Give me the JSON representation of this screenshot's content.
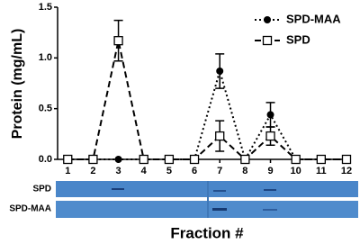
{
  "chart_data": {
    "type": "line",
    "y_label": "Protein (mg/mL)",
    "x_label": "Fraction #",
    "x": [
      1,
      2,
      3,
      4,
      5,
      6,
      7,
      8,
      9,
      10,
      11,
      12
    ],
    "xlim": [
      0.6,
      12
    ],
    "xticks": [
      1,
      2,
      3,
      4,
      5,
      6,
      7,
      8,
      9,
      10,
      11,
      12
    ],
    "ylim": [
      0,
      1.5
    ],
    "yticks": [
      {
        "value": 0,
        "label": "0.0"
      },
      {
        "value": 0.5,
        "label": "0.5"
      },
      {
        "value": 1,
        "label": "1.0"
      },
      {
        "value": 1.5,
        "label": "1.5"
      }
    ],
    "series": [
      {
        "name": "SPD-MAA",
        "color": "#000000",
        "style": "dotted",
        "marker": "circle",
        "values": [
          0,
          0,
          0,
          0,
          0,
          0,
          0.87,
          0,
          0.44,
          0,
          0,
          0
        ],
        "errors": [
          null,
          null,
          null,
          null,
          null,
          null,
          0.17,
          null,
          0.12,
          null,
          null,
          null
        ]
      },
      {
        "name": "SPD",
        "color": "#000000",
        "style": "dashed",
        "marker": "square",
        "values": [
          0,
          0,
          1.17,
          0,
          0,
          0,
          0.23,
          0,
          0.23,
          0,
          0,
          0
        ],
        "errors": [
          null,
          null,
          0.2,
          null,
          null,
          null,
          0.15,
          null,
          0.09,
          null,
          null,
          null
        ]
      }
    ],
    "gel_lanes": [
      "SPD",
      "SPD-MAA"
    ]
  }
}
